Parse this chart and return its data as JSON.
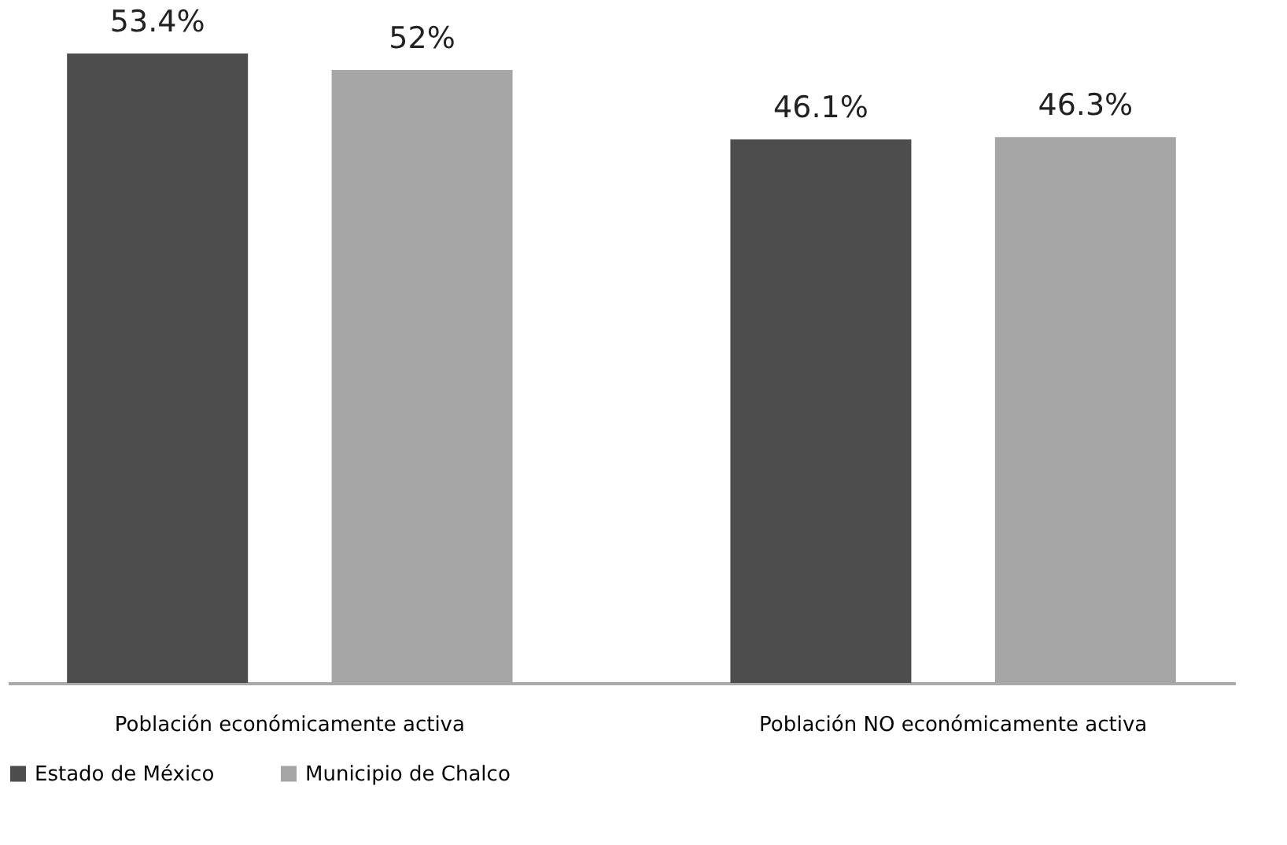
{
  "chart_data": {
    "type": "bar",
    "categories": [
      "Población económicamente activa",
      "Población NO económicamente activa"
    ],
    "series": [
      {
        "name": "Estado de México",
        "color": "#4d4d4d",
        "values": [
          53.4,
          46.1
        ],
        "value_labels": [
          "53.4%",
          "46.1%"
        ]
      },
      {
        "name": "Municipio de Chalco",
        "color": "#a6a6a6",
        "values": [
          52,
          46.3
        ],
        "value_labels": [
          "52%",
          "46.3%"
        ]
      }
    ],
    "legend": "bottom",
    "grid": false
  }
}
